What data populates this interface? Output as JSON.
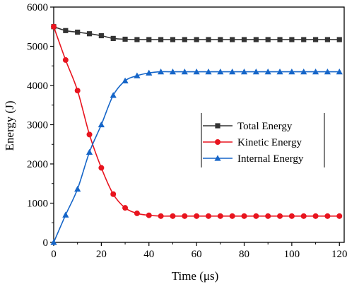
{
  "chart_data": {
    "type": "line",
    "xlabel": "Time (μs)",
    "ylabel": "Energy (J)",
    "xlim": [
      0,
      122
    ],
    "ylim": [
      0,
      6000
    ],
    "x_ticks": [
      0,
      20,
      40,
      60,
      80,
      100,
      120
    ],
    "y_ticks": [
      0,
      1000,
      2000,
      3000,
      4000,
      5000,
      6000
    ],
    "x": [
      0,
      5,
      10,
      15,
      20,
      25,
      30,
      35,
      40,
      45,
      50,
      55,
      60,
      65,
      70,
      75,
      80,
      85,
      90,
      95,
      100,
      105,
      110,
      115,
      120
    ],
    "legend_position": "center-right",
    "grid": false,
    "series": [
      {
        "name": "Total Energy",
        "color": "#333333",
        "marker": "square",
        "values": [
          5500,
          5400,
          5360,
          5320,
          5270,
          5200,
          5180,
          5170,
          5170,
          5170,
          5170,
          5170,
          5170,
          5170,
          5170,
          5170,
          5170,
          5170,
          5170,
          5170,
          5170,
          5170,
          5170,
          5170,
          5170
        ]
      },
      {
        "name": "Kinetic Energy",
        "color": "#e8141e",
        "marker": "circle",
        "values": [
          5500,
          4650,
          3870,
          2750,
          1900,
          1230,
          880,
          740,
          690,
          670,
          670,
          670,
          670,
          670,
          670,
          670,
          670,
          670,
          670,
          670,
          670,
          670,
          670,
          670,
          670
        ]
      },
      {
        "name": "Internal Energy",
        "color": "#1565c8",
        "marker": "triangle",
        "values": [
          0,
          700,
          1360,
          2300,
          3000,
          3750,
          4120,
          4250,
          4320,
          4350,
          4350,
          4350,
          4350,
          4350,
          4350,
          4350,
          4350,
          4350,
          4350,
          4350,
          4350,
          4350,
          4350,
          4350,
          4350
        ]
      }
    ]
  }
}
